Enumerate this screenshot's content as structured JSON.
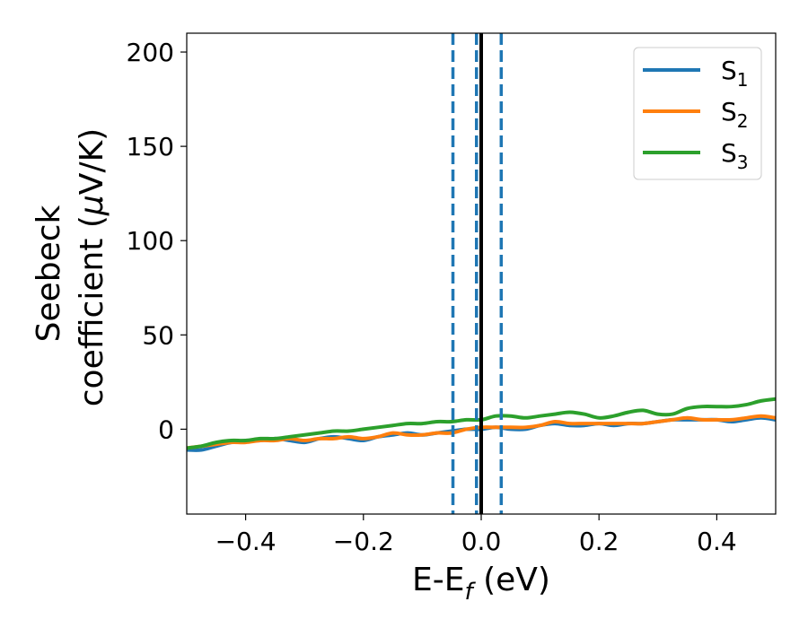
{
  "chart_data": {
    "type": "line",
    "xlabel": {
      "main": "E-E",
      "sub": "f",
      "rest": " (eV)"
    },
    "ylabel": {
      "line1": "Seebeck",
      "line2_prefix": "coefficient  (",
      "mu": "μ",
      "line2_suffix": "V/K)"
    },
    "xlim": [
      -0.5,
      0.5
    ],
    "ylim": [
      -45,
      210
    ],
    "xticks": [
      -0.4,
      -0.2,
      0.0,
      0.2,
      0.4
    ],
    "xtick_labels": [
      "−0.4",
      "−0.2",
      "0.0",
      "0.2",
      "0.4"
    ],
    "yticks": [
      0,
      50,
      100,
      150,
      200
    ],
    "ytick_labels": [
      "0",
      "50",
      "100",
      "150",
      "200"
    ],
    "grid": false,
    "legend_position": "top-right",
    "series": [
      {
        "name": "S",
        "sub": "1",
        "color": "#1f77b4",
        "x": [
          -0.5,
          -0.475,
          -0.45,
          -0.425,
          -0.4,
          -0.375,
          -0.35,
          -0.325,
          -0.3,
          -0.275,
          -0.25,
          -0.225,
          -0.2,
          -0.175,
          -0.15,
          -0.125,
          -0.1,
          -0.075,
          -0.05,
          -0.025,
          0.0,
          0.025,
          0.05,
          0.075,
          0.1,
          0.125,
          0.15,
          0.175,
          0.2,
          0.225,
          0.25,
          0.275,
          0.3,
          0.325,
          0.35,
          0.375,
          0.4,
          0.425,
          0.45,
          0.475,
          0.5
        ],
        "y": [
          -11,
          -11,
          -9,
          -7,
          -6,
          -6,
          -5,
          -6,
          -7,
          -5,
          -4,
          -5,
          -6,
          -4,
          -3,
          -2,
          -3,
          -2,
          -1,
          0,
          0,
          1,
          0,
          0,
          2,
          3,
          2,
          2,
          3,
          2,
          3,
          3,
          4,
          5,
          5,
          5,
          5,
          4,
          5,
          6,
          5
        ]
      },
      {
        "name": "S",
        "sub": "2",
        "color": "#ff7f0e",
        "x": [
          -0.5,
          -0.475,
          -0.45,
          -0.425,
          -0.4,
          -0.375,
          -0.35,
          -0.325,
          -0.3,
          -0.275,
          -0.25,
          -0.225,
          -0.2,
          -0.175,
          -0.15,
          -0.125,
          -0.1,
          -0.075,
          -0.05,
          -0.025,
          0.0,
          0.025,
          0.05,
          0.075,
          0.1,
          0.125,
          0.15,
          0.175,
          0.2,
          0.225,
          0.25,
          0.275,
          0.3,
          0.325,
          0.35,
          0.375,
          0.4,
          0.425,
          0.45,
          0.475,
          0.5
        ],
        "y": [
          -10,
          -9,
          -8,
          -7,
          -7,
          -6,
          -6,
          -5,
          -6,
          -5,
          -5,
          -4,
          -5,
          -4,
          -2,
          -3,
          -3,
          -2,
          -2,
          0,
          1,
          1,
          1,
          1,
          2,
          4,
          3,
          3,
          3,
          3,
          3,
          3,
          4,
          5,
          6,
          5,
          5,
          5,
          6,
          7,
          6
        ]
      },
      {
        "name": "S",
        "sub": "3",
        "color": "#2ca02c",
        "x": [
          -0.5,
          -0.475,
          -0.45,
          -0.425,
          -0.4,
          -0.375,
          -0.35,
          -0.325,
          -0.3,
          -0.275,
          -0.25,
          -0.225,
          -0.2,
          -0.175,
          -0.15,
          -0.125,
          -0.1,
          -0.075,
          -0.05,
          -0.025,
          0.0,
          0.025,
          0.05,
          0.075,
          0.1,
          0.125,
          0.15,
          0.175,
          0.2,
          0.225,
          0.25,
          0.275,
          0.3,
          0.325,
          0.35,
          0.375,
          0.4,
          0.425,
          0.45,
          0.475,
          0.5
        ],
        "y": [
          -10,
          -9,
          -7,
          -6,
          -6,
          -5,
          -5,
          -4,
          -3,
          -2,
          -1,
          -1,
          0,
          1,
          2,
          3,
          3,
          4,
          4,
          5,
          5,
          7,
          7,
          6,
          7,
          8,
          9,
          8,
          6,
          7,
          9,
          10,
          8,
          8,
          11,
          12,
          12,
          12,
          13,
          15,
          16
        ]
      }
    ],
    "vlines": [
      {
        "x": 0.0,
        "style": "solid",
        "color": "#000000"
      },
      {
        "x": -0.048,
        "style": "dashed",
        "color": "#1f77b4"
      },
      {
        "x": -0.008,
        "style": "dashed",
        "color": "#1f77b4"
      },
      {
        "x": 0.034,
        "style": "dashed",
        "color": "#1f77b4"
      }
    ]
  }
}
